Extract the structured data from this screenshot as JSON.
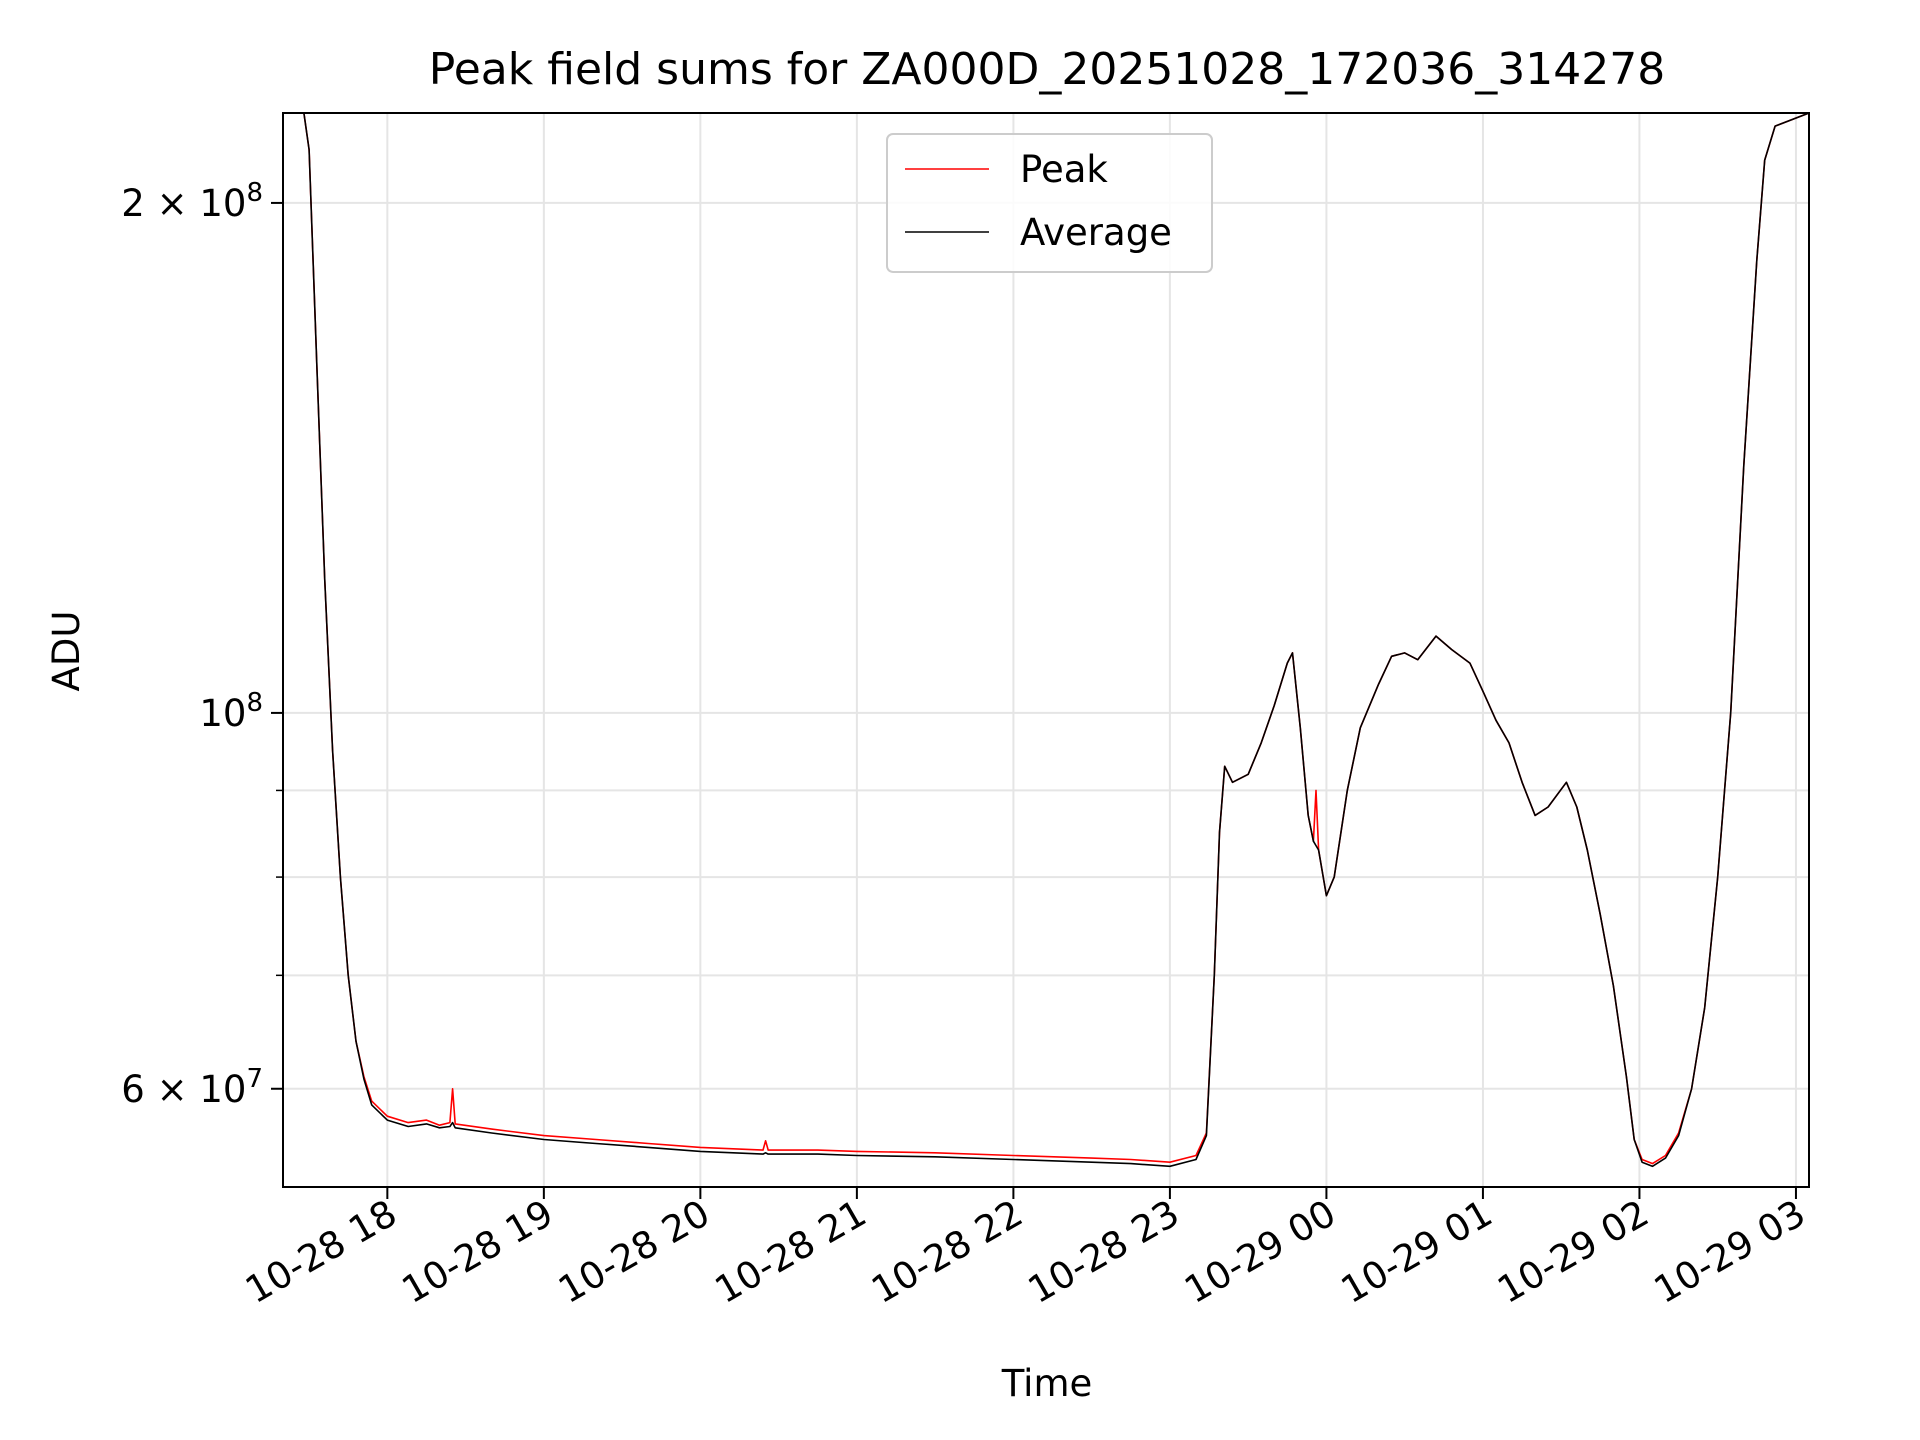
{
  "chart_data": {
    "type": "line",
    "title": "Peak field sums for ZA000D_20251028_172036_314278",
    "xlabel": "Time",
    "ylabel": "ADU",
    "yscale": "log",
    "xlim": [
      "2025-10-28T17:20",
      "2025-10-29T03:05"
    ],
    "ylim": [
      52500000,
      226000000
    ],
    "grid": true,
    "legend_position": "top-center",
    "x_ticks": [
      {
        "value": "2025-10-28T18:00",
        "label": "10-28 18"
      },
      {
        "value": "2025-10-28T19:00",
        "label": "10-28 19"
      },
      {
        "value": "2025-10-28T20:00",
        "label": "10-28 20"
      },
      {
        "value": "2025-10-28T21:00",
        "label": "10-28 21"
      },
      {
        "value": "2025-10-28T22:00",
        "label": "10-28 22"
      },
      {
        "value": "2025-10-28T23:00",
        "label": "10-28 23"
      },
      {
        "value": "2025-10-29T00:00",
        "label": "10-29 00"
      },
      {
        "value": "2025-10-29T01:00",
        "label": "10-29 01"
      },
      {
        "value": "2025-10-29T02:00",
        "label": "10-29 02"
      },
      {
        "value": "2025-10-29T03:00",
        "label": "10-29 03"
      }
    ],
    "y_ticks": [
      {
        "value": 60000000,
        "base": "6 × 10",
        "exp": "7"
      },
      {
        "value": 100000000,
        "base": "10",
        "exp": "8"
      },
      {
        "value": 200000000,
        "base": "2 × 10",
        "exp": "8"
      }
    ],
    "y_minor_ticks": [
      70000000,
      80000000,
      90000000
    ],
    "series": [
      {
        "name": "Peak",
        "color": "#ff0000",
        "points": [
          [
            "2025-10-28T17:28",
            226000000
          ],
          [
            "2025-10-28T17:30",
            215000000
          ],
          [
            "2025-10-28T17:33",
            160000000
          ],
          [
            "2025-10-28T17:36",
            120000000
          ],
          [
            "2025-10-28T17:39",
            95000000
          ],
          [
            "2025-10-28T17:42",
            80000000
          ],
          [
            "2025-10-28T17:45",
            70000000
          ],
          [
            "2025-10-28T17:48",
            64000000
          ],
          [
            "2025-10-28T17:51",
            61000000
          ],
          [
            "2025-10-28T17:54",
            59000000
          ],
          [
            "2025-10-28T18:00",
            57800000
          ],
          [
            "2025-10-28T18:08",
            57300000
          ],
          [
            "2025-10-28T18:15",
            57500000
          ],
          [
            "2025-10-28T18:20",
            57100000
          ],
          [
            "2025-10-28T18:24",
            57300000
          ],
          [
            "2025-10-28T18:25",
            60000000
          ],
          [
            "2025-10-28T18:26",
            57200000
          ],
          [
            "2025-10-28T18:40",
            56800000
          ],
          [
            "2025-10-28T19:00",
            56300000
          ],
          [
            "2025-10-28T19:20",
            56000000
          ],
          [
            "2025-10-28T19:40",
            55700000
          ],
          [
            "2025-10-28T20:00",
            55400000
          ],
          [
            "2025-10-28T20:24",
            55200000
          ],
          [
            "2025-10-28T20:25",
            55900000
          ],
          [
            "2025-10-28T20:26",
            55200000
          ],
          [
            "2025-10-28T20:45",
            55200000
          ],
          [
            "2025-10-28T21:00",
            55100000
          ],
          [
            "2025-10-28T21:30",
            55000000
          ],
          [
            "2025-10-28T22:00",
            54800000
          ],
          [
            "2025-10-28T22:30",
            54600000
          ],
          [
            "2025-10-28T22:45",
            54500000
          ],
          [
            "2025-10-28T23:00",
            54300000
          ],
          [
            "2025-10-28T23:10",
            54800000
          ],
          [
            "2025-10-28T23:14",
            56500000
          ],
          [
            "2025-10-28T23:17",
            70000000
          ],
          [
            "2025-10-28T23:19",
            85000000
          ],
          [
            "2025-10-28T23:21",
            93000000
          ],
          [
            "2025-10-28T23:24",
            91000000
          ],
          [
            "2025-10-28T23:30",
            92000000
          ],
          [
            "2025-10-28T23:35",
            96000000
          ],
          [
            "2025-10-28T23:40",
            101000000
          ],
          [
            "2025-10-28T23:45",
            107000000
          ],
          [
            "2025-10-28T23:47",
            108500000
          ],
          [
            "2025-10-28T23:50",
            98000000
          ],
          [
            "2025-10-28T23:53",
            87000000
          ],
          [
            "2025-10-28T23:55",
            84000000
          ],
          [
            "2025-10-28T23:56",
            90000000
          ],
          [
            "2025-10-28T23:57",
            83000000
          ],
          [
            "2025-10-29T00:00",
            78000000
          ],
          [
            "2025-10-29T00:03",
            80000000
          ],
          [
            "2025-10-29T00:08",
            90000000
          ],
          [
            "2025-10-29T00:13",
            98000000
          ],
          [
            "2025-10-29T00:20",
            104000000
          ],
          [
            "2025-10-29T00:25",
            108000000
          ],
          [
            "2025-10-29T00:30",
            108500000
          ],
          [
            "2025-10-29T00:35",
            107500000
          ],
          [
            "2025-10-29T00:42",
            111000000
          ],
          [
            "2025-10-29T00:48",
            109000000
          ],
          [
            "2025-10-29T00:55",
            107000000
          ],
          [
            "2025-10-29T01:00",
            103000000
          ],
          [
            "2025-10-29T01:05",
            99000000
          ],
          [
            "2025-10-29T01:10",
            96000000
          ],
          [
            "2025-10-29T01:15",
            91000000
          ],
          [
            "2025-10-29T01:20",
            87000000
          ],
          [
            "2025-10-29T01:25",
            88000000
          ],
          [
            "2025-10-29T01:32",
            91000000
          ],
          [
            "2025-10-29T01:36",
            88000000
          ],
          [
            "2025-10-29T01:40",
            83000000
          ],
          [
            "2025-10-29T01:45",
            76000000
          ],
          [
            "2025-10-29T01:50",
            69000000
          ],
          [
            "2025-10-29T01:55",
            61000000
          ],
          [
            "2025-10-29T01:58",
            56000000
          ],
          [
            "2025-10-29T02:01",
            54500000
          ],
          [
            "2025-10-29T02:05",
            54200000
          ],
          [
            "2025-10-29T02:10",
            54800000
          ],
          [
            "2025-10-29T02:15",
            56500000
          ],
          [
            "2025-10-29T02:20",
            60000000
          ],
          [
            "2025-10-29T02:25",
            67000000
          ],
          [
            "2025-10-29T02:30",
            80000000
          ],
          [
            "2025-10-29T02:35",
            100000000
          ],
          [
            "2025-10-29T02:40",
            140000000
          ],
          [
            "2025-10-29T02:45",
            185000000
          ],
          [
            "2025-10-29T02:48",
            212000000
          ],
          [
            "2025-10-29T02:52",
            222000000
          ],
          [
            "2025-10-29T03:05",
            226000000
          ]
        ]
      },
      {
        "name": "Average",
        "color": "#000000",
        "points": [
          [
            "2025-10-28T17:28",
            226000000
          ],
          [
            "2025-10-28T17:30",
            215000000
          ],
          [
            "2025-10-28T17:33",
            160000000
          ],
          [
            "2025-10-28T17:36",
            120000000
          ],
          [
            "2025-10-28T17:39",
            95000000
          ],
          [
            "2025-10-28T17:42",
            80000000
          ],
          [
            "2025-10-28T17:45",
            70000000
          ],
          [
            "2025-10-28T17:48",
            64000000
          ],
          [
            "2025-10-28T17:51",
            60800000
          ],
          [
            "2025-10-28T17:54",
            58700000
          ],
          [
            "2025-10-28T18:00",
            57500000
          ],
          [
            "2025-10-28T18:08",
            57000000
          ],
          [
            "2025-10-28T18:15",
            57200000
          ],
          [
            "2025-10-28T18:20",
            56900000
          ],
          [
            "2025-10-28T18:24",
            57000000
          ],
          [
            "2025-10-28T18:25",
            57300000
          ],
          [
            "2025-10-28T18:26",
            56900000
          ],
          [
            "2025-10-28T18:40",
            56500000
          ],
          [
            "2025-10-28T19:00",
            56000000
          ],
          [
            "2025-10-28T19:20",
            55700000
          ],
          [
            "2025-10-28T19:40",
            55400000
          ],
          [
            "2025-10-28T20:00",
            55100000
          ],
          [
            "2025-10-28T20:24",
            54900000
          ],
          [
            "2025-10-28T20:25",
            55000000
          ],
          [
            "2025-10-28T20:26",
            54900000
          ],
          [
            "2025-10-28T20:45",
            54900000
          ],
          [
            "2025-10-28T21:00",
            54800000
          ],
          [
            "2025-10-28T21:30",
            54700000
          ],
          [
            "2025-10-28T22:00",
            54500000
          ],
          [
            "2025-10-28T22:30",
            54300000
          ],
          [
            "2025-10-28T22:45",
            54200000
          ],
          [
            "2025-10-28T23:00",
            54000000
          ],
          [
            "2025-10-28T23:10",
            54500000
          ],
          [
            "2025-10-28T23:14",
            56300000
          ],
          [
            "2025-10-28T23:17",
            70000000
          ],
          [
            "2025-10-28T23:19",
            85000000
          ],
          [
            "2025-10-28T23:21",
            93000000
          ],
          [
            "2025-10-28T23:24",
            91000000
          ],
          [
            "2025-10-28T23:30",
            92000000
          ],
          [
            "2025-10-28T23:35",
            96000000
          ],
          [
            "2025-10-28T23:40",
            101000000
          ],
          [
            "2025-10-28T23:45",
            107000000
          ],
          [
            "2025-10-28T23:47",
            108500000
          ],
          [
            "2025-10-28T23:50",
            98000000
          ],
          [
            "2025-10-28T23:53",
            87000000
          ],
          [
            "2025-10-28T23:55",
            84000000
          ],
          [
            "2025-10-28T23:56",
            83500000
          ],
          [
            "2025-10-28T23:57",
            83000000
          ],
          [
            "2025-10-29T00:00",
            78000000
          ],
          [
            "2025-10-29T00:03",
            80000000
          ],
          [
            "2025-10-29T00:08",
            90000000
          ],
          [
            "2025-10-29T00:13",
            98000000
          ],
          [
            "2025-10-29T00:20",
            104000000
          ],
          [
            "2025-10-29T00:25",
            108000000
          ],
          [
            "2025-10-29T00:30",
            108500000
          ],
          [
            "2025-10-29T00:35",
            107500000
          ],
          [
            "2025-10-29T00:42",
            111000000
          ],
          [
            "2025-10-29T00:48",
            109000000
          ],
          [
            "2025-10-29T00:55",
            107000000
          ],
          [
            "2025-10-29T01:00",
            103000000
          ],
          [
            "2025-10-29T01:05",
            99000000
          ],
          [
            "2025-10-29T01:10",
            96000000
          ],
          [
            "2025-10-29T01:15",
            91000000
          ],
          [
            "2025-10-29T01:20",
            87000000
          ],
          [
            "2025-10-29T01:25",
            88000000
          ],
          [
            "2025-10-29T01:32",
            91000000
          ],
          [
            "2025-10-29T01:36",
            88000000
          ],
          [
            "2025-10-29T01:40",
            83000000
          ],
          [
            "2025-10-29T01:45",
            76000000
          ],
          [
            "2025-10-29T01:50",
            69000000
          ],
          [
            "2025-10-29T01:55",
            61000000
          ],
          [
            "2025-10-29T01:58",
            56000000
          ],
          [
            "2025-10-29T02:01",
            54300000
          ],
          [
            "2025-10-29T02:05",
            54000000
          ],
          [
            "2025-10-29T02:10",
            54600000
          ],
          [
            "2025-10-29T02:15",
            56300000
          ],
          [
            "2025-10-29T02:20",
            60000000
          ],
          [
            "2025-10-29T02:25",
            67000000
          ],
          [
            "2025-10-29T02:30",
            80000000
          ],
          [
            "2025-10-29T02:35",
            100000000
          ],
          [
            "2025-10-29T02:40",
            140000000
          ],
          [
            "2025-10-29T02:45",
            185000000
          ],
          [
            "2025-10-29T02:48",
            212000000
          ],
          [
            "2025-10-29T02:52",
            222000000
          ],
          [
            "2025-10-29T03:05",
            226000000
          ]
        ]
      }
    ]
  }
}
